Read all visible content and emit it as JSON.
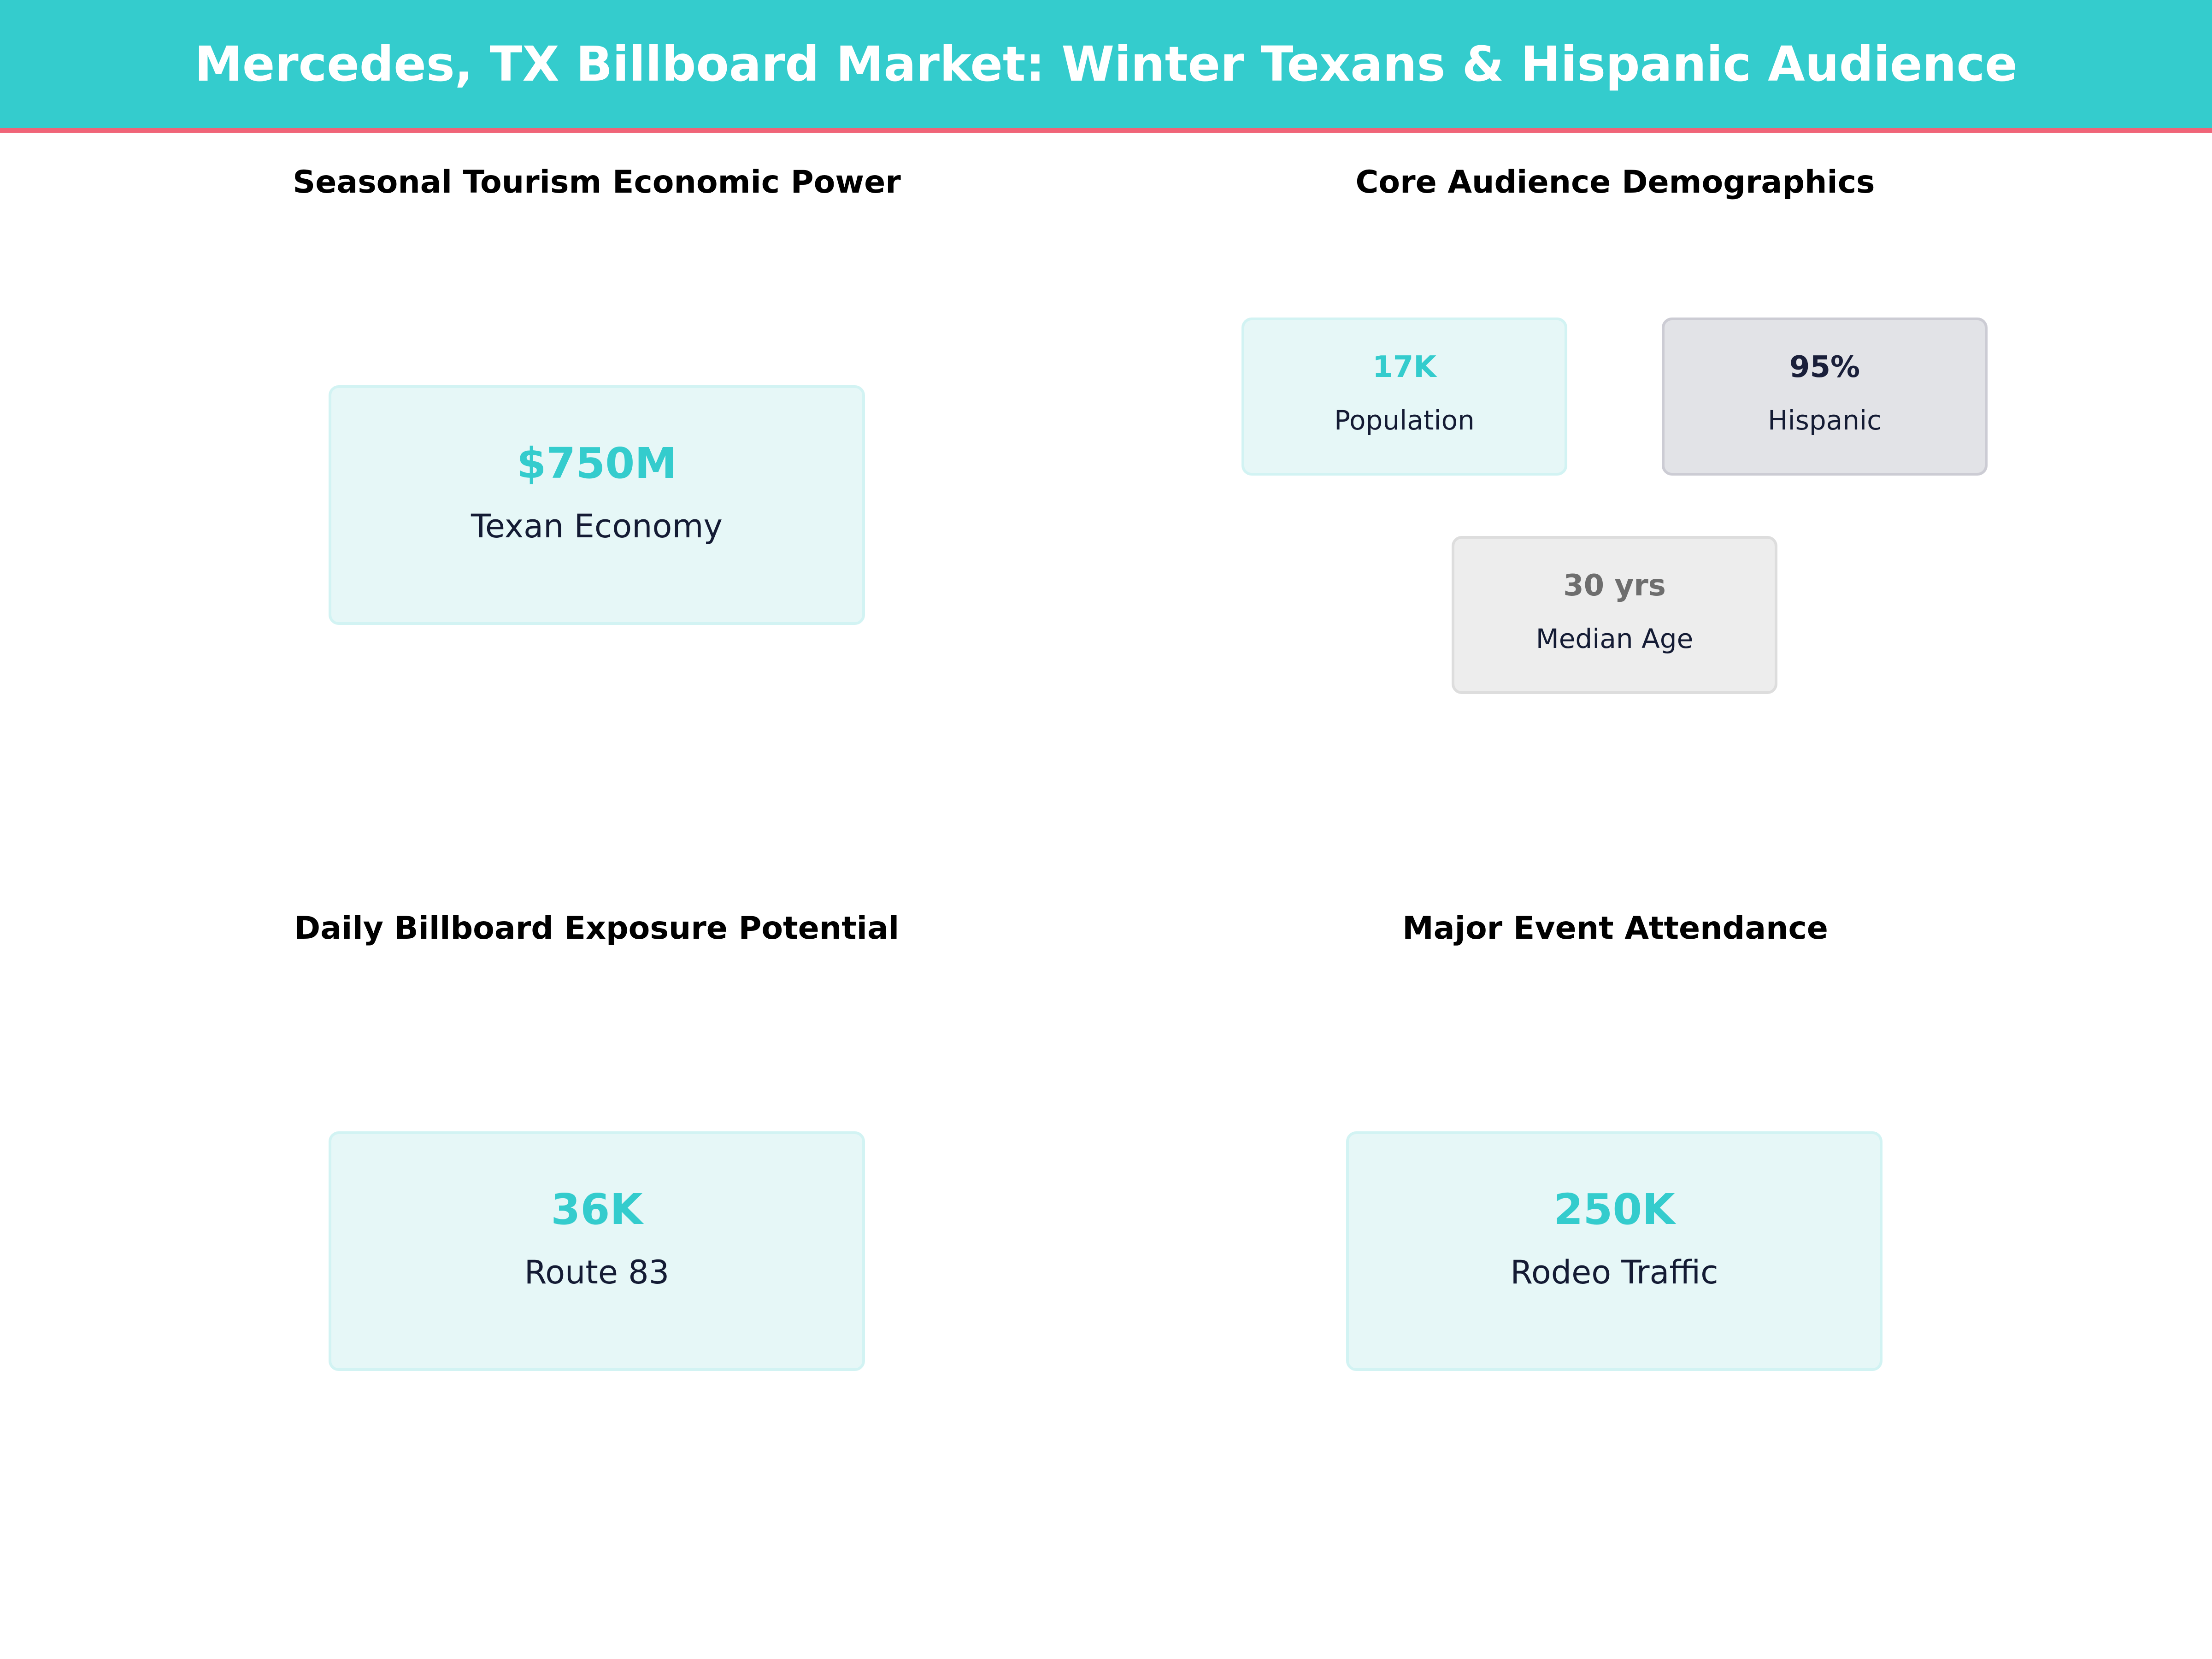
{
  "title": "Mercedes, TX Billboard Market: Winter Texans & Hispanic Audience",
  "colors": {
    "accent": "#34CCCD",
    "header_rule": "#F06478",
    "dark": "#141B34"
  },
  "panels": {
    "tourism": {
      "title": "Seasonal Tourism Economic Power",
      "value": "$750M",
      "label": "Texan Economy"
    },
    "demographics": {
      "title": "Core Audience Demographics",
      "cards": [
        {
          "value": "17K",
          "label": "Population"
        },
        {
          "value": "95%",
          "label": "Hispanic"
        },
        {
          "value": "30 yrs",
          "label": "Median Age"
        }
      ]
    },
    "exposure": {
      "title": "Daily Billboard Exposure Potential",
      "value": "36K",
      "label": "Route 83"
    },
    "events": {
      "title": "Major Event Attendance",
      "value": "250K",
      "label": "Rodeo Traffic"
    }
  }
}
